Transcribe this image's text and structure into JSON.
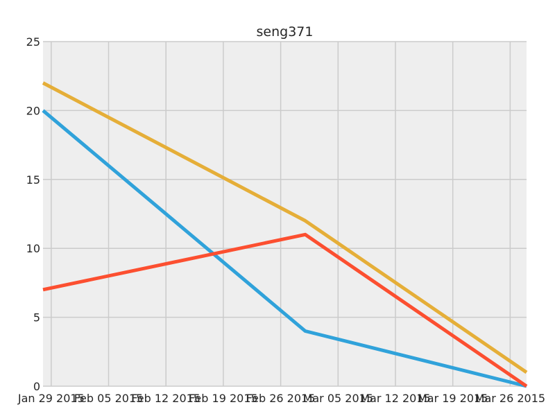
{
  "chart_data": {
    "type": "line",
    "title": "seng371",
    "xlabel": "",
    "ylabel": "",
    "x_axis_type": "date",
    "xlim": [
      "2015-01-28",
      "2015-03-28"
    ],
    "ylim": [
      0,
      25
    ],
    "y_ticks": [
      0,
      5,
      10,
      15,
      20,
      25
    ],
    "x_ticks": [
      {
        "date": "2015-01-29",
        "label": "Jan 29 2015"
      },
      {
        "date": "2015-02-05",
        "label": "Feb 05 2015"
      },
      {
        "date": "2015-02-12",
        "label": "Feb 12 2015"
      },
      {
        "date": "2015-02-19",
        "label": "Feb 19 2015"
      },
      {
        "date": "2015-02-26",
        "label": "Feb 26 2015"
      },
      {
        "date": "2015-03-05",
        "label": "Mar 05 2015"
      },
      {
        "date": "2015-03-12",
        "label": "Mar 12 2015"
      },
      {
        "date": "2015-03-19",
        "label": "Mar 19 2015"
      },
      {
        "date": "2015-03-26",
        "label": "Mar 26 2015"
      }
    ],
    "grid": true,
    "series": [
      {
        "color": "#30a2da",
        "points": [
          {
            "x": "2015-01-28",
            "y": 20
          },
          {
            "x": "2015-03-01",
            "y": 4
          },
          {
            "x": "2015-03-28",
            "y": 0
          }
        ]
      },
      {
        "color": "#fc4f30",
        "points": [
          {
            "x": "2015-01-28",
            "y": 7
          },
          {
            "x": "2015-03-01",
            "y": 11
          },
          {
            "x": "2015-03-28",
            "y": 0
          }
        ]
      },
      {
        "color": "#e5ae38",
        "points": [
          {
            "x": "2015-01-28",
            "y": 22
          },
          {
            "x": "2015-03-01",
            "y": 12
          },
          {
            "x": "2015-03-28",
            "y": 1
          }
        ]
      }
    ]
  }
}
